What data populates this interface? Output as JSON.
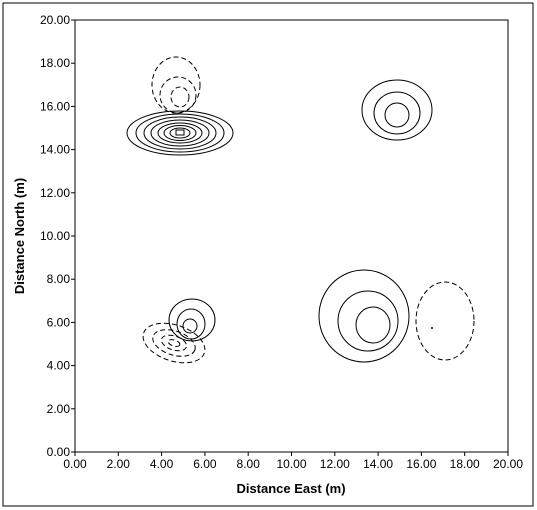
{
  "chart_data": {
    "type": "contour",
    "xlabel": "Distance East (m)",
    "ylabel": "Distance North (m)",
    "xlim": [
      0,
      20
    ],
    "ylim": [
      0,
      20
    ],
    "xticks": [
      {
        "value": 0,
        "label": "0.00"
      },
      {
        "value": 2,
        "label": "2.00"
      },
      {
        "value": 4,
        "label": "4.00"
      },
      {
        "value": 6,
        "label": "6.00"
      },
      {
        "value": 8,
        "label": "8.00"
      },
      {
        "value": 10,
        "label": "10.00"
      },
      {
        "value": 12,
        "label": "12.00"
      },
      {
        "value": 14,
        "label": "14.00"
      },
      {
        "value": 16,
        "label": "16.00"
      },
      {
        "value": 18,
        "label": "18.00"
      },
      {
        "value": 20,
        "label": "20.00"
      }
    ],
    "yticks": [
      {
        "value": 0,
        "label": "0.00"
      },
      {
        "value": 2,
        "label": "2.00"
      },
      {
        "value": 4,
        "label": "4.00"
      },
      {
        "value": 6,
        "label": "6.00"
      },
      {
        "value": 8,
        "label": "8.00"
      },
      {
        "value": 10,
        "label": "10.00"
      },
      {
        "value": 12,
        "label": "12.00"
      },
      {
        "value": 14,
        "label": "14.00"
      },
      {
        "value": 16,
        "label": "16.00"
      },
      {
        "value": 18,
        "label": "18.00"
      },
      {
        "value": 20,
        "label": "20.00"
      }
    ]
  }
}
